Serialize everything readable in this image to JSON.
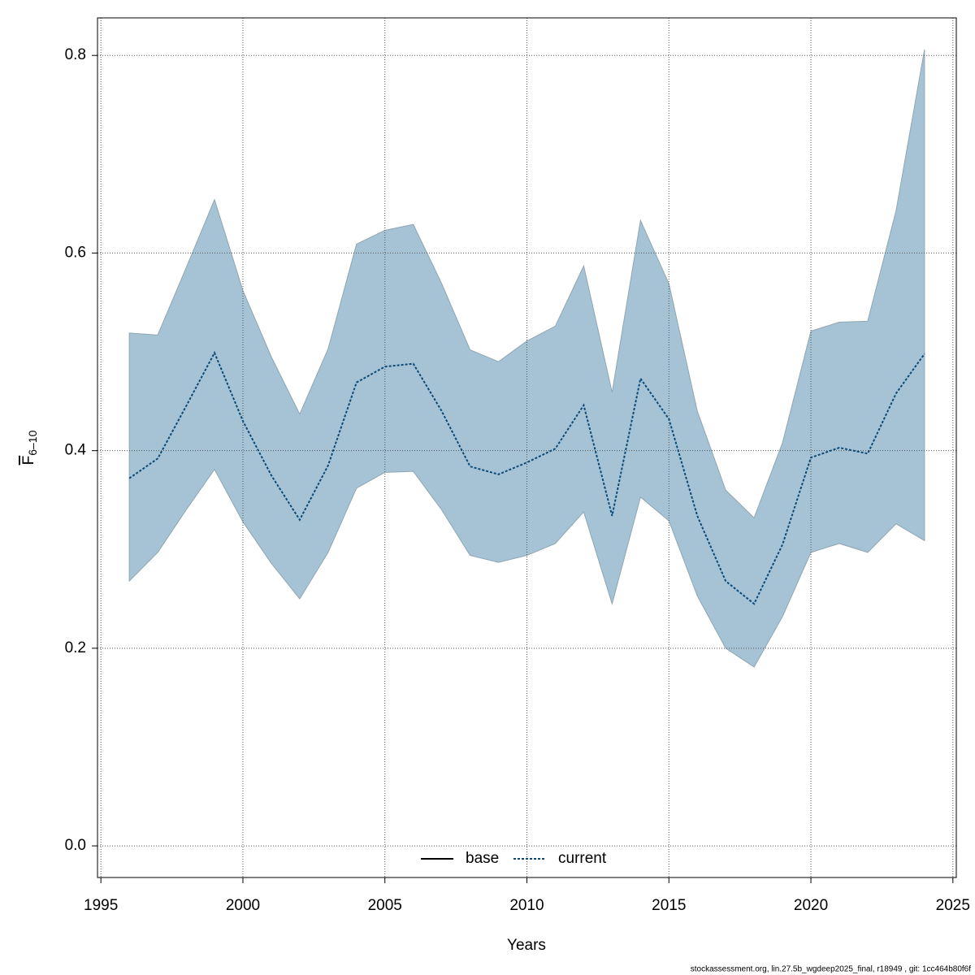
{
  "chart_data": {
    "type": "line",
    "xlabel": "Years",
    "ylabel": "F",
    "ylabel_sub": "6–10",
    "footer": "stockassessment.org, lin.27.5b_wgdeep2025_final, r18949 , git: 1cc464b80f6f",
    "x": [
      1996,
      1997,
      1998,
      1999,
      2000,
      2001,
      2002,
      2003,
      2004,
      2005,
      2006,
      2007,
      2008,
      2009,
      2010,
      2011,
      2012,
      2013,
      2014,
      2015,
      2016,
      2017,
      2018,
      2019,
      2020,
      2021,
      2022,
      2023,
      2024
    ],
    "series": [
      {
        "name": "base",
        "color": "#000000",
        "dash": "solid",
        "values": [
          null,
          null,
          null,
          null,
          null,
          null,
          null,
          null,
          null,
          null,
          null,
          null,
          null,
          null,
          null,
          null,
          null,
          null,
          null,
          null,
          null,
          null,
          null,
          null,
          null,
          null,
          null,
          null,
          null
        ]
      },
      {
        "name": "current",
        "color": "#0b4a78",
        "dash": "dotted",
        "values": [
          0.372,
          0.392,
          0.445,
          0.499,
          0.43,
          0.375,
          0.33,
          0.385,
          0.469,
          0.485,
          0.488,
          0.44,
          0.384,
          0.376,
          0.388,
          0.402,
          0.446,
          0.334,
          0.473,
          0.432,
          0.334,
          0.268,
          0.245,
          0.305,
          0.393,
          0.403,
          0.397,
          0.458,
          0.498
        ],
        "upper": [
          0.519,
          0.517,
          0.585,
          0.654,
          0.562,
          0.495,
          0.437,
          0.503,
          0.609,
          0.623,
          0.629,
          0.569,
          0.502,
          0.49,
          0.511,
          0.526,
          0.587,
          0.459,
          0.633,
          0.569,
          0.44,
          0.36,
          0.332,
          0.408,
          0.521,
          0.53,
          0.531,
          0.643,
          0.806
        ],
        "lower": [
          0.268,
          0.297,
          0.34,
          0.381,
          0.328,
          0.286,
          0.25,
          0.297,
          0.362,
          0.378,
          0.379,
          0.34,
          0.294,
          0.287,
          0.294,
          0.306,
          0.338,
          0.245,
          0.353,
          0.329,
          0.253,
          0.2,
          0.181,
          0.232,
          0.297,
          0.306,
          0.297,
          0.326,
          0.309
        ],
        "band_color": "#a5c3d4"
      }
    ],
    "xlim": [
      1994.88,
      2025.12
    ],
    "ylim": [
      -0.032,
      0.838
    ],
    "xticks": [
      1995,
      2000,
      2005,
      2010,
      2015,
      2020,
      2025
    ],
    "yticks": [
      {
        "value": 0,
        "label": "0.0"
      },
      0.2,
      0.4,
      0.6,
      0.8
    ],
    "grid": true,
    "legend": "bottom"
  }
}
